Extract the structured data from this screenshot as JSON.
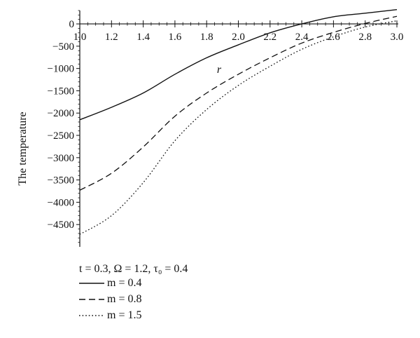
{
  "chart_data": {
    "type": "line",
    "title": "",
    "xlabel": "r",
    "ylabel": "The temperature",
    "xlim": [
      1.0,
      3.0
    ],
    "ylim": [
      -5000,
      300
    ],
    "x_ticks": [
      1.0,
      1.2,
      1.4,
      1.6,
      1.8,
      2.0,
      2.2,
      2.4,
      2.6,
      2.8,
      3.0
    ],
    "x_tick_labels": [
      "1.0",
      "1.2",
      "1.4",
      "1.6",
      "1.8",
      "2.0",
      "2.2",
      "2.4",
      "2.6",
      "2.8",
      "3.0"
    ],
    "y_ticks": [
      0,
      -500,
      -1000,
      -1500,
      -2000,
      -2500,
      -3000,
      -3500,
      -4000,
      -4500
    ],
    "y_tick_labels": [
      "0",
      "−500",
      "−1000",
      "−1500",
      "−2000",
      "−2500",
      "−3000",
      "−3500",
      "−4000",
      "−4500"
    ],
    "grid": false,
    "legend_placement": "bottom-left",
    "params_caption": "t = 0.3, Ω = 1.2, τ₀ = 0.4",
    "series": [
      {
        "name": "m = 0.4",
        "style": "solid",
        "x": [
          1.0,
          1.2,
          1.4,
          1.6,
          1.8,
          2.0,
          2.2,
          2.4,
          2.6,
          2.8,
          3.0
        ],
        "y": [
          -2150,
          -1870,
          -1550,
          -1130,
          -760,
          -470,
          -200,
          0,
          160,
          240,
          320
        ]
      },
      {
        "name": "m = 0.8",
        "style": "dashed",
        "x": [
          1.0,
          1.2,
          1.4,
          1.6,
          1.8,
          2.0,
          2.2,
          2.4,
          2.6,
          2.8,
          3.0
        ],
        "y": [
          -3730,
          -3350,
          -2760,
          -2070,
          -1550,
          -1130,
          -760,
          -430,
          -190,
          10,
          170
        ]
      },
      {
        "name": "m = 1.5",
        "style": "dotted",
        "x": [
          1.0,
          1.2,
          1.4,
          1.6,
          1.8,
          2.0,
          2.2,
          2.4,
          2.6,
          2.8,
          3.0
        ],
        "y": [
          -4720,
          -4300,
          -3560,
          -2620,
          -1920,
          -1380,
          -950,
          -570,
          -290,
          -70,
          70
        ]
      }
    ]
  },
  "colors": {
    "line": "#111111",
    "axis": "#111111",
    "background": "#ffffff"
  }
}
